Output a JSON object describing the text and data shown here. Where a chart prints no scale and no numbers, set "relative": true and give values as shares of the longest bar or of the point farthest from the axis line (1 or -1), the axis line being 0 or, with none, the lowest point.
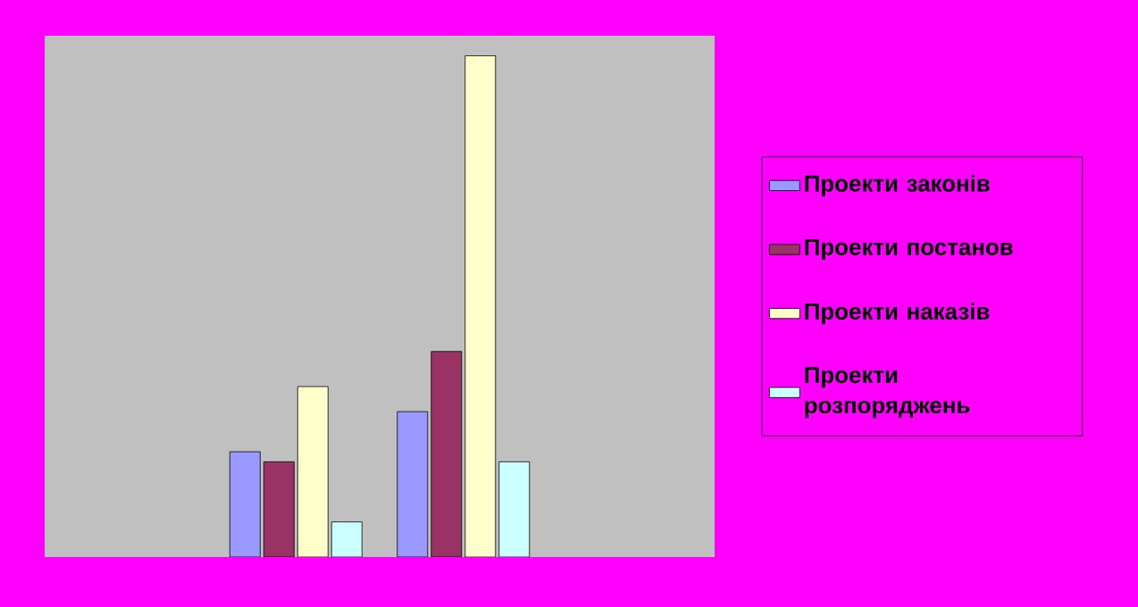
{
  "chart_data": {
    "type": "bar",
    "relative": true,
    "legend": "right",
    "categories": [
      null,
      null
    ],
    "series": [
      {
        "name": "Проекти законів",
        "color": "#9999ff",
        "values": [
          0.21,
          0.29
        ]
      },
      {
        "name": "Проекти постанов",
        "color": "#993366",
        "values": [
          0.19,
          0.41
        ]
      },
      {
        "name": "Проекти наказів",
        "color": "#ffffcc",
        "values": [
          0.34,
          1
        ]
      },
      {
        "name": "Проекти розпоряджень",
        "color": "#ccffff",
        "values": [
          0.07,
          0.19
        ]
      }
    ]
  }
}
